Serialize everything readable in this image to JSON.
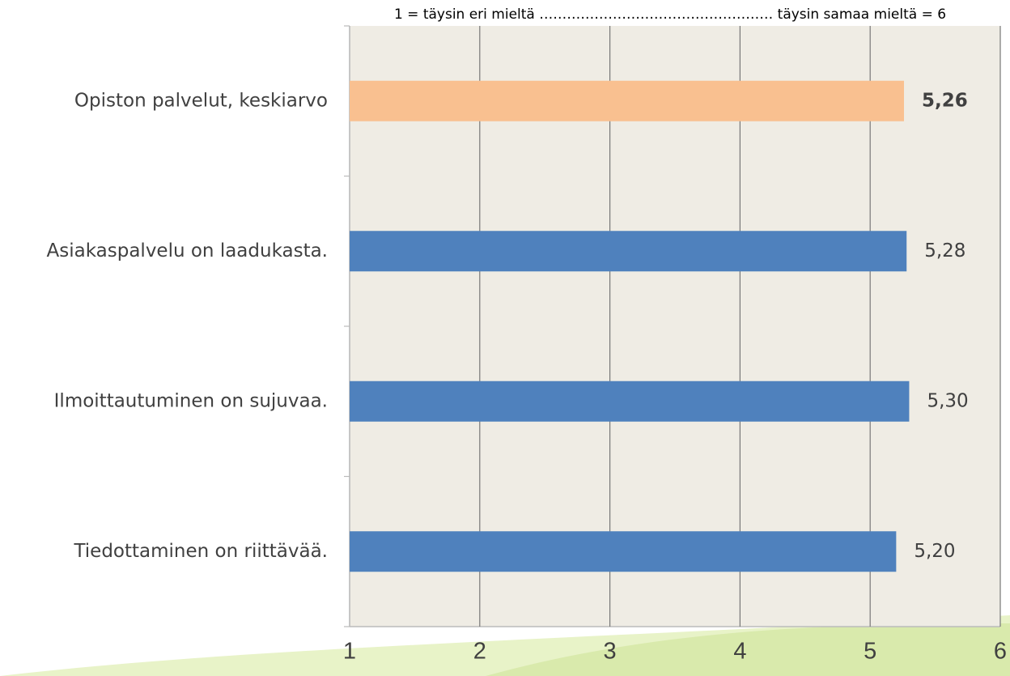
{
  "chart_data": {
    "type": "hbar",
    "subtitle": "1 = täysin eri mieltä …………………………………………… täysin samaa mieltä = 6",
    "categories": [
      "Opiston palvelut, keskiarvo",
      "Asiakaspalvelu on laadukasta.",
      "Ilmoittautuminen on sujuvaa.",
      "Tiedottaminen on riittävää."
    ],
    "values": [
      5.26,
      5.28,
      5.3,
      5.2
    ],
    "value_labels": [
      "5,26",
      "5,28",
      "5,30",
      "5,20"
    ],
    "colors": [
      "#f9c090",
      "#4f81bd",
      "#4f81bd",
      "#4f81bd"
    ],
    "xlim": [
      1,
      6
    ],
    "xticks": [
      1,
      2,
      3,
      4,
      5,
      6
    ],
    "grid": true
  }
}
